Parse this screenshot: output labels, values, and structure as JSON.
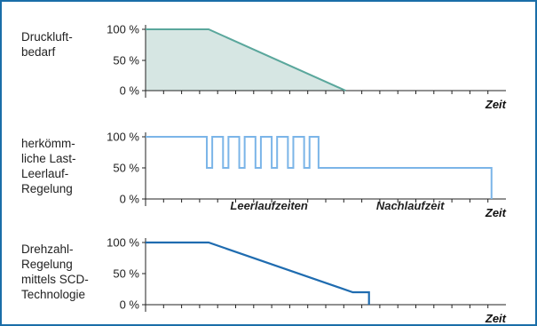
{
  "colors": {
    "frame": "#1a6ea8",
    "axis": "#222222",
    "demand_line": "#5aa79c",
    "demand_fill": "#d6e6e3",
    "load_idle_line": "#7bb5e8",
    "speed_line": "#1f6cb0"
  },
  "chart_data": [
    {
      "type": "area",
      "label_lines": [
        "Druckluft-",
        "bedarf"
      ],
      "xlabel": "Zeit",
      "yticks": [
        "100 %",
        "50 %",
        "0 %"
      ],
      "x_range": [
        0,
        100
      ],
      "y_range": [
        0,
        100
      ],
      "points": [
        [
          0,
          100
        ],
        [
          17.5,
          100
        ],
        [
          55.5,
          0
        ]
      ]
    },
    {
      "type": "line",
      "label_lines": [
        "herkömm-",
        "liche Last-",
        "Leerlauf-",
        "Regelung"
      ],
      "xlabel": "Zeit",
      "yticks": [
        "100 %",
        "50 %",
        "0 %"
      ],
      "x_range": [
        0,
        100
      ],
      "y_range": [
        0,
        100
      ],
      "annotations": [
        {
          "text": "Leerlaufzeiten",
          "x": 23.5,
          "y": -17
        },
        {
          "text": "Nachlaufzeit",
          "x": 64,
          "y": -17
        }
      ],
      "points": [
        [
          0,
          100
        ],
        [
          17,
          100
        ],
        [
          17,
          50
        ],
        [
          18.5,
          50
        ],
        [
          18.5,
          100
        ],
        [
          21.5,
          100
        ],
        [
          21.5,
          50
        ],
        [
          23,
          50
        ],
        [
          23,
          100
        ],
        [
          26,
          100
        ],
        [
          26,
          50
        ],
        [
          27.5,
          50
        ],
        [
          27.5,
          100
        ],
        [
          30.5,
          100
        ],
        [
          30.5,
          50
        ],
        [
          32,
          50
        ],
        [
          32,
          100
        ],
        [
          35,
          100
        ],
        [
          35,
          50
        ],
        [
          36.5,
          50
        ],
        [
          36.5,
          100
        ],
        [
          39.5,
          100
        ],
        [
          39.5,
          50
        ],
        [
          41,
          50
        ],
        [
          41,
          100
        ],
        [
          44,
          100
        ],
        [
          44,
          50
        ],
        [
          45.5,
          50
        ],
        [
          45.5,
          100
        ],
        [
          48,
          100
        ],
        [
          48,
          50
        ],
        [
          96,
          50
        ],
        [
          96,
          0
        ]
      ]
    },
    {
      "type": "line",
      "label_lines": [
        "Drehzahl-",
        "Regelung",
        "mittels SCD-",
        "Technologie"
      ],
      "xlabel": "Zeit",
      "yticks": [
        "100 %",
        "50 %",
        "0 %"
      ],
      "x_range": [
        0,
        100
      ],
      "y_range": [
        0,
        100
      ],
      "points": [
        [
          0,
          100
        ],
        [
          17.5,
          100
        ],
        [
          57.5,
          20
        ],
        [
          62,
          20
        ],
        [
          62,
          0
        ]
      ]
    }
  ]
}
